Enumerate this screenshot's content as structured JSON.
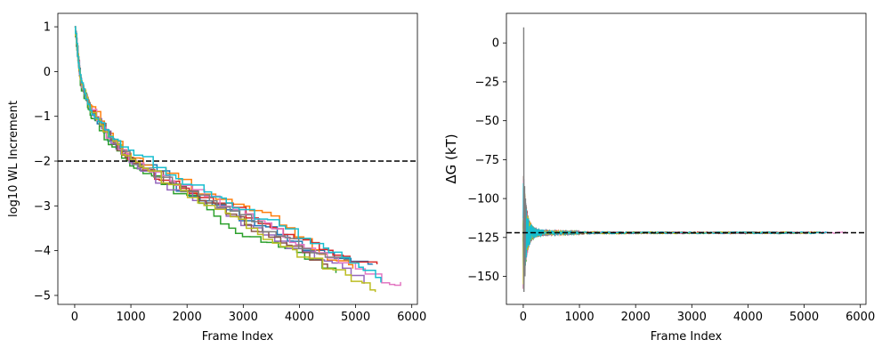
{
  "chart_data": [
    {
      "type": "line",
      "title": "",
      "xlabel": "Frame Index",
      "ylabel": "log10 WL Increment",
      "xlim": [
        -300,
        6100
      ],
      "ylim": [
        -5.2,
        1.3
      ],
      "xticks": [
        0,
        1000,
        2000,
        3000,
        4000,
        5000,
        6000
      ],
      "yticks": [
        1,
        0,
        -1,
        -2,
        -3,
        -4,
        -5
      ],
      "ytick_labels": [
        "1",
        "0",
        "−1",
        "−2",
        "−3",
        "−4",
        "−5"
      ],
      "grid": false,
      "reference_line": {
        "y": -2,
        "style": "dashed",
        "color": "#000000"
      },
      "series_style": "step",
      "series": [
        {
          "color": "#1f77b4",
          "final_x": 5300,
          "final_y": -4.3,
          "values_at_x": [
            [
              0,
              1
            ],
            [
              100,
              -0.2
            ],
            [
              300,
              -0.9
            ],
            [
              600,
              -1.5
            ],
            [
              1000,
              -2.0
            ],
            [
              1500,
              -2.3
            ],
            [
              2000,
              -2.8
            ],
            [
              2500,
              -3.0
            ],
            [
              3000,
              -3.3
            ],
            [
              3500,
              -3.6
            ],
            [
              4000,
              -3.9
            ],
            [
              4500,
              -4.1
            ],
            [
              5000,
              -4.2
            ],
            [
              5300,
              -4.3
            ]
          ]
        },
        {
          "color": "#ff7f0e",
          "final_x": 4950,
          "final_y": -4.4,
          "values_at_x": [
            [
              0,
              1
            ],
            [
              100,
              -0.2
            ],
            [
              300,
              -0.8
            ],
            [
              600,
              -1.4
            ],
            [
              1000,
              -1.9
            ],
            [
              1500,
              -2.2
            ],
            [
              2000,
              -2.6
            ],
            [
              2500,
              -2.8
            ],
            [
              3000,
              -3.0
            ],
            [
              3500,
              -3.3
            ],
            [
              4000,
              -3.7
            ],
            [
              4500,
              -4.2
            ],
            [
              4950,
              -4.4
            ]
          ]
        },
        {
          "color": "#2ca02c",
          "final_x": 4650,
          "final_y": -4.5,
          "values_at_x": [
            [
              0,
              1
            ],
            [
              100,
              -0.3
            ],
            [
              300,
              -1.0
            ],
            [
              600,
              -1.6
            ],
            [
              1000,
              -2.1
            ],
            [
              1500,
              -2.5
            ],
            [
              2000,
              -2.8
            ],
            [
              2500,
              -3.3
            ],
            [
              3000,
              -3.7
            ],
            [
              3500,
              -3.9
            ],
            [
              4000,
              -4.1
            ],
            [
              4500,
              -4.4
            ],
            [
              4650,
              -4.5
            ]
          ]
        },
        {
          "color": "#d62728",
          "final_x": 5380,
          "final_y": -4.3,
          "values_at_x": [
            [
              0,
              1
            ],
            [
              100,
              -0.2
            ],
            [
              300,
              -0.9
            ],
            [
              600,
              -1.5
            ],
            [
              1000,
              -2.0
            ],
            [
              1500,
              -2.4
            ],
            [
              2000,
              -2.7
            ],
            [
              2500,
              -2.9
            ],
            [
              3000,
              -3.2
            ],
            [
              3500,
              -3.5
            ],
            [
              4000,
              -3.8
            ],
            [
              4500,
              -4.0
            ],
            [
              5000,
              -4.3
            ],
            [
              5380,
              -4.3
            ]
          ]
        },
        {
          "color": "#9467bd",
          "final_x": 5150,
          "final_y": -4.7,
          "values_at_x": [
            [
              0,
              1
            ],
            [
              100,
              -0.2
            ],
            [
              300,
              -0.9
            ],
            [
              600,
              -1.5
            ],
            [
              1000,
              -2.0
            ],
            [
              1500,
              -2.5
            ],
            [
              2000,
              -2.8
            ],
            [
              2500,
              -3.0
            ],
            [
              3000,
              -3.4
            ],
            [
              3500,
              -3.8
            ],
            [
              4000,
              -4.0
            ],
            [
              4500,
              -4.3
            ],
            [
              5150,
              -4.7
            ]
          ]
        },
        {
          "color": "#8c564b",
          "final_x": 4500,
          "final_y": -4.4,
          "values_at_x": [
            [
              0,
              1
            ],
            [
              100,
              -0.2
            ],
            [
              300,
              -0.9
            ],
            [
              600,
              -1.5
            ],
            [
              1000,
              -2.0
            ],
            [
              1500,
              -2.4
            ],
            [
              2000,
              -2.7
            ],
            [
              2500,
              -3.0
            ],
            [
              3000,
              -3.4
            ],
            [
              3500,
              -3.8
            ],
            [
              4000,
              -4.0
            ],
            [
              4500,
              -4.4
            ]
          ]
        },
        {
          "color": "#e377c2",
          "final_x": 5800,
          "final_y": -4.7,
          "values_at_x": [
            [
              0,
              1
            ],
            [
              100,
              -0.2
            ],
            [
              300,
              -0.9
            ],
            [
              600,
              -1.5
            ],
            [
              1000,
              -2.0
            ],
            [
              1500,
              -2.3
            ],
            [
              2000,
              -2.6
            ],
            [
              2500,
              -2.9
            ],
            [
              3000,
              -3.2
            ],
            [
              3500,
              -3.5
            ],
            [
              4000,
              -3.9
            ],
            [
              4500,
              -4.1
            ],
            [
              5000,
              -4.4
            ],
            [
              5500,
              -4.7
            ],
            [
              5800,
              -4.7
            ]
          ]
        },
        {
          "color": "#7f7f7f",
          "final_x": 4900,
          "final_y": -4.2,
          "values_at_x": [
            [
              0,
              1
            ],
            [
              100,
              -0.2
            ],
            [
              300,
              -0.9
            ],
            [
              600,
              -1.5
            ],
            [
              1000,
              -2.0
            ],
            [
              1500,
              -2.4
            ],
            [
              2000,
              -2.7
            ],
            [
              2500,
              -3.0
            ],
            [
              3000,
              -3.3
            ],
            [
              3500,
              -3.6
            ],
            [
              4000,
              -3.9
            ],
            [
              4500,
              -4.1
            ],
            [
              4900,
              -4.2
            ]
          ]
        },
        {
          "color": "#bcbd22",
          "final_x": 5350,
          "final_y": -4.9,
          "values_at_x": [
            [
              0,
              1
            ],
            [
              100,
              -0.2
            ],
            [
              300,
              -0.9
            ],
            [
              600,
              -1.5
            ],
            [
              1000,
              -2.0
            ],
            [
              1500,
              -2.4
            ],
            [
              2000,
              -2.8
            ],
            [
              2500,
              -3.1
            ],
            [
              3000,
              -3.4
            ],
            [
              3500,
              -3.8
            ],
            [
              4000,
              -4.1
            ],
            [
              4500,
              -4.4
            ],
            [
              5000,
              -4.7
            ],
            [
              5350,
              -4.9
            ]
          ]
        },
        {
          "color": "#17becf",
          "final_x": 5450,
          "final_y": -4.7,
          "values_at_x": [
            [
              0,
              1
            ],
            [
              100,
              -0.2
            ],
            [
              300,
              -0.9
            ],
            [
              600,
              -1.4
            ],
            [
              1000,
              -1.8
            ],
            [
              1500,
              -2.2
            ],
            [
              2000,
              -2.5
            ],
            [
              2500,
              -2.8
            ],
            [
              3000,
              -3.1
            ],
            [
              3500,
              -3.4
            ],
            [
              4000,
              -3.7
            ],
            [
              4500,
              -4.0
            ],
            [
              5000,
              -4.3
            ],
            [
              5450,
              -4.7
            ]
          ]
        }
      ]
    },
    {
      "type": "line",
      "title": "",
      "xlabel": "Frame Index",
      "ylabel": "ΔG (kT)",
      "xlim": [
        -300,
        6100
      ],
      "ylim": [
        -168,
        19
      ],
      "xticks": [
        0,
        1000,
        2000,
        3000,
        4000,
        5000,
        6000
      ],
      "yticks": [
        0,
        -25,
        -50,
        -75,
        -100,
        -125,
        -150
      ],
      "ytick_labels": [
        "0",
        "−25",
        "−50",
        "−75",
        "−100",
        "−125",
        "−150"
      ],
      "grid": false,
      "reference_line": {
        "y": -122,
        "style": "dashed",
        "color": "#000000"
      },
      "converged_value": -122,
      "initial_spread": [
        -160,
        10
      ],
      "series_colors": [
        "#1f77b4",
        "#ff7f0e",
        "#2ca02c",
        "#d62728",
        "#9467bd",
        "#8c564b",
        "#e377c2",
        "#7f7f7f",
        "#bcbd22",
        "#17becf"
      ],
      "series_final_x": [
        5300,
        4950,
        4650,
        5380,
        5150,
        4500,
        5800,
        4900,
        5350,
        5450
      ]
    }
  ]
}
